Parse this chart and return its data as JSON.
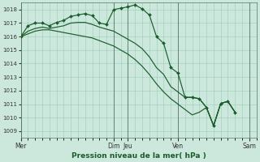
{
  "xlabel": "Pression niveau de la mer( hPa )",
  "bg_color": "#cce8dc",
  "grid_color": "#99ccbb",
  "line_color": "#1a5c2a",
  "marker_color": "#1a5c2a",
  "ylim": [
    1008.5,
    1018.5
  ],
  "yticks": [
    1009,
    1010,
    1011,
    1012,
    1013,
    1014,
    1015,
    1016,
    1017,
    1018
  ],
  "day_labels": [
    "Mer",
    "Dim",
    "Jeu",
    "Ven",
    "Sam"
  ],
  "day_positions": [
    0,
    13,
    15,
    22,
    32
  ],
  "xmin": 0,
  "xmax": 33,
  "series": [
    {
      "y": [
        1016.0,
        1016.8,
        1017.0,
        1017.0,
        1016.8,
        1017.05,
        1017.2,
        1017.5,
        1017.6,
        1017.7,
        1017.55,
        1017.0,
        1016.9,
        1018.0,
        1018.1,
        1018.2,
        1018.35,
        1018.05,
        1017.6,
        1016.0,
        1015.5,
        1013.7,
        1013.3,
        1011.5,
        1011.5,
        1011.4,
        1010.75,
        1009.4,
        1011.05,
        1011.2,
        1010.4,
        null,
        null
      ],
      "has_markers": true
    },
    {
      "y": [
        1016.0,
        1016.4,
        1016.6,
        1016.7,
        1016.6,
        1016.7,
        1016.8,
        1017.0,
        1017.05,
        1017.05,
        1016.9,
        1016.7,
        1016.55,
        1016.4,
        1016.1,
        1015.8,
        1015.5,
        1015.1,
        1014.5,
        1013.7,
        1013.2,
        1012.3,
        1011.9,
        1011.5,
        1011.5,
        1011.4,
        1010.75,
        1009.4,
        1011.05,
        1011.2,
        1010.4,
        null,
        null
      ],
      "has_markers": false
    },
    {
      "y": [
        1016.0,
        1016.2,
        1016.4,
        1016.5,
        1016.5,
        1016.4,
        1016.3,
        1016.2,
        1016.1,
        1016.0,
        1015.9,
        1015.7,
        1015.5,
        1015.3,
        1015.0,
        1014.7,
        1014.3,
        1013.8,
        1013.2,
        1012.5,
        1011.9,
        1011.4,
        1011.0,
        1010.6,
        1010.2,
        1010.4,
        1010.75,
        1009.4,
        1011.05,
        1011.2,
        1010.4,
        null,
        null
      ],
      "has_markers": false
    }
  ]
}
